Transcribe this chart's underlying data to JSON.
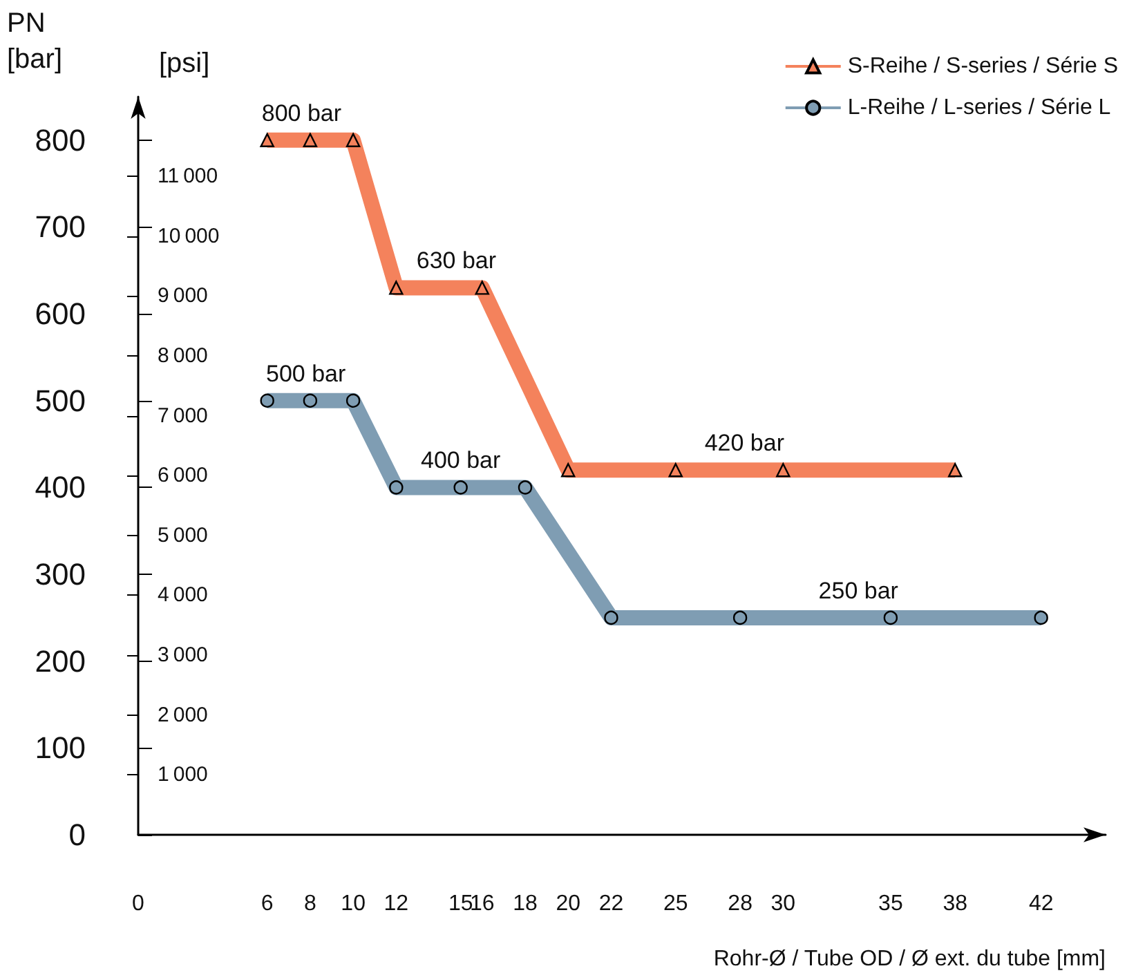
{
  "chart_data": {
    "type": "line",
    "ylabel": "PN\n[bar]",
    "y2label": "[psi]",
    "xlabel": "Rohr-Ø / Tube OD / Ø ext. du tube [mm]",
    "xlim": [
      0,
      45
    ],
    "xticks": [
      0,
      6,
      8,
      10,
      12,
      15,
      16,
      18,
      20,
      22,
      25,
      28,
      30,
      35,
      38,
      42
    ],
    "ylim": [
      0,
      850
    ],
    "yticks": [
      0,
      100,
      200,
      300,
      400,
      500,
      600,
      700,
      800
    ],
    "y2lim": [
      0,
      12328
    ],
    "y2ticks": [
      1000,
      2000,
      3000,
      4000,
      5000,
      6000,
      7000,
      8000,
      9000,
      10000,
      11000
    ],
    "series": [
      {
        "name": "S-Reihe / S-series / Série S",
        "color": "#f4825c",
        "marker": "triangle",
        "x": [
          6,
          8,
          10,
          12,
          16,
          20,
          25,
          30,
          38
        ],
        "values": [
          800,
          800,
          800,
          630,
          630,
          420,
          420,
          420,
          420
        ]
      },
      {
        "name": "L-Reihe / L-series / Série L",
        "color": "#7f9db3",
        "marker": "circle",
        "x": [
          6,
          8,
          10,
          12,
          15,
          18,
          22,
          28,
          35,
          42
        ],
        "values": [
          500,
          500,
          500,
          400,
          400,
          400,
          250,
          250,
          250,
          250
        ]
      }
    ],
    "annotations": [
      {
        "text": "800 bar",
        "x": 7.6,
        "y": 800
      },
      {
        "text": "630 bar",
        "x": 14.8,
        "y": 630
      },
      {
        "text": "420 bar",
        "x": 28.2,
        "y": 420
      },
      {
        "text": "500 bar",
        "x": 7.8,
        "y": 500
      },
      {
        "text": "400 bar",
        "x": 15,
        "y": 400
      },
      {
        "text": "250 bar",
        "x": 33.5,
        "y": 250
      }
    ],
    "legend": "top right",
    "grid": false
  }
}
